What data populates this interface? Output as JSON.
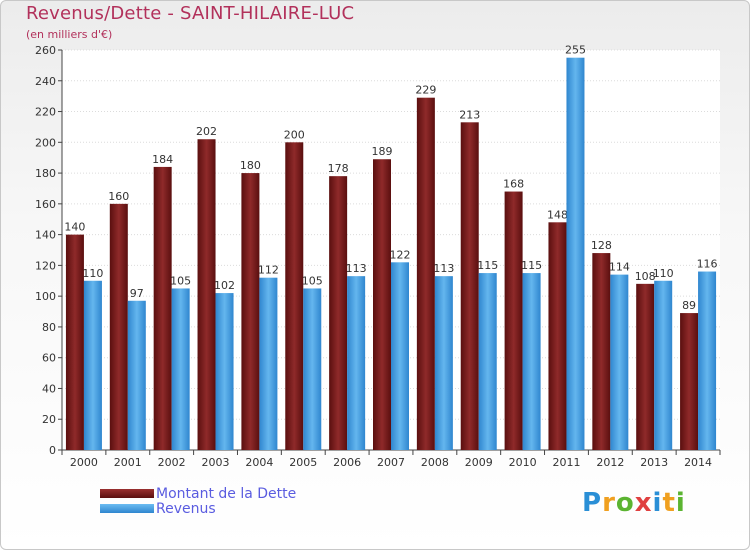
{
  "title": "Revenus/Dette - SAINT-HILAIRE-LUC",
  "subtitle": "(en milliers d'€)",
  "logo_text": "Proxiti",
  "colors": {
    "title": "#b2315b",
    "dette": "#7a1f1f",
    "revenus": "#4aa3e3",
    "legend_text": "#5a5ce0"
  },
  "chart_data": {
    "type": "bar",
    "title": "Revenus/Dette - SAINT-HILAIRE-LUC",
    "ylabel": "(en milliers d'€)",
    "xlabel": "",
    "categories": [
      "2000",
      "2001",
      "2002",
      "2003",
      "2004",
      "2005",
      "2006",
      "2007",
      "2008",
      "2009",
      "2010",
      "2011",
      "2012",
      "2013",
      "2014"
    ],
    "series": [
      {
        "name": "Montant de la Dette",
        "values": [
          140,
          160,
          184,
          202,
          180,
          200,
          178,
          189,
          229,
          213,
          168,
          148,
          128,
          108,
          89
        ]
      },
      {
        "name": "Revenus",
        "values": [
          110,
          97,
          105,
          102,
          112,
          105,
          113,
          122,
          113,
          115,
          115,
          255,
          114,
          110,
          116
        ]
      }
    ],
    "ylim": [
      0,
      260
    ],
    "yticks": [
      0,
      20,
      40,
      60,
      80,
      100,
      120,
      140,
      160,
      180,
      200,
      220,
      240,
      260
    ],
    "grid": true,
    "legend_position": "bottom-left"
  }
}
